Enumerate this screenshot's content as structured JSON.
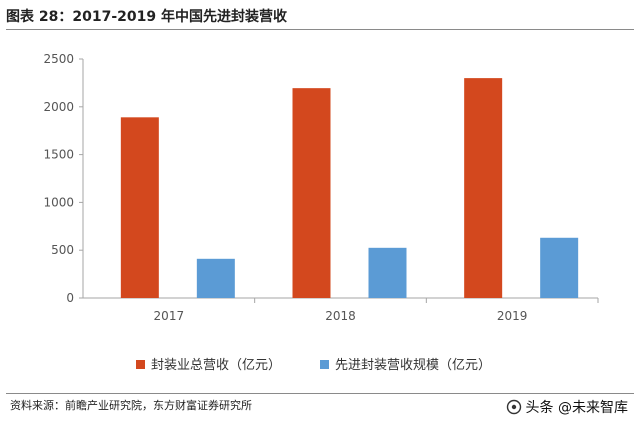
{
  "title": "图表 28：2017-2019 年中国先进封装营收",
  "source": "资料来源：前瞻产业研究院，东方财富证券研究所",
  "watermark": "头条 @未来智库",
  "colors": {
    "series1": "#D3481E",
    "series2": "#5B9BD5",
    "axis": "#a6a6a6"
  },
  "chart_data": {
    "type": "bar",
    "categories": [
      "2017",
      "2018",
      "2019"
    ],
    "series": [
      {
        "name": "封装业总营收（亿元）",
        "values": [
          1890,
          2195,
          2300
        ]
      },
      {
        "name": "先进封装营收规模（亿元）",
        "values": [
          410,
          525,
          630
        ]
      }
    ],
    "ylim": [
      0,
      2500
    ],
    "yticks": [
      0,
      500,
      1000,
      1500,
      2000,
      2500
    ],
    "grid": false,
    "legend_position": "bottom"
  }
}
